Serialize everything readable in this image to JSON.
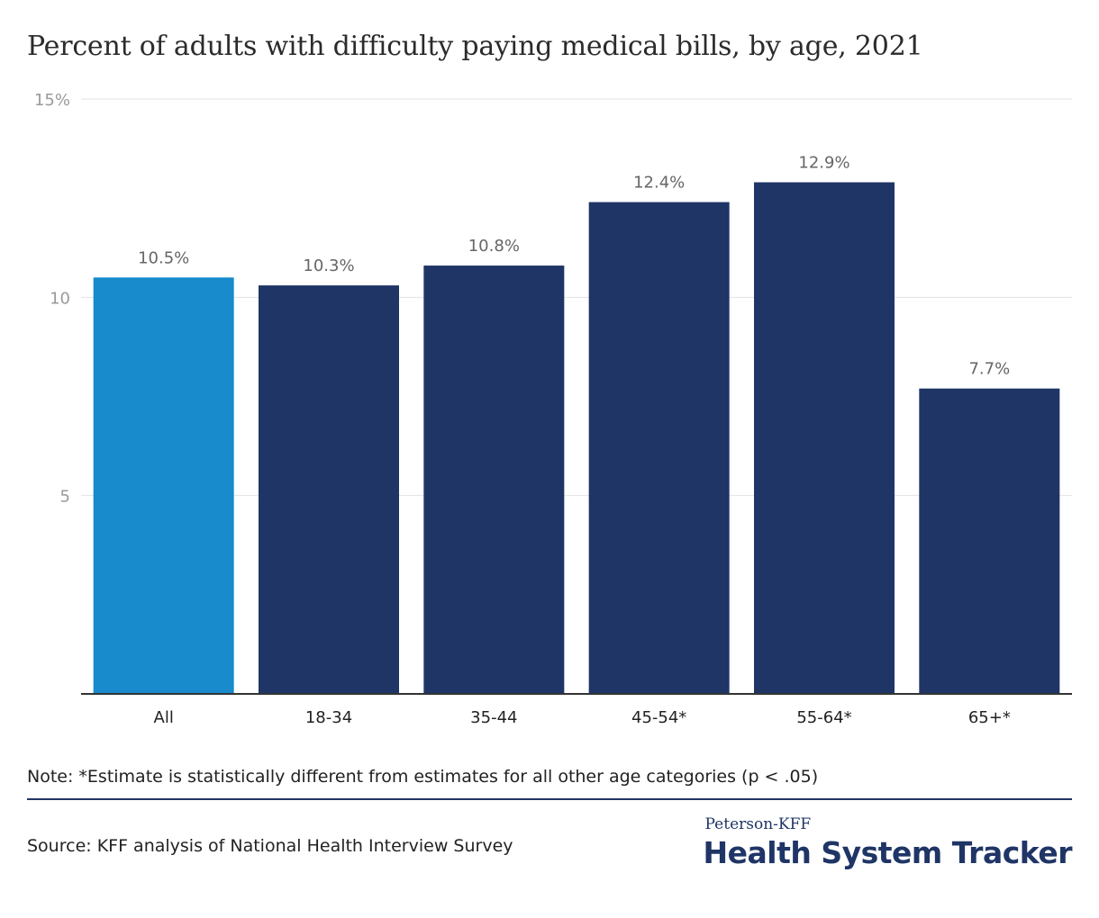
{
  "title": "Percent of adults with difficulty paying medical bills, by age, 2021",
  "note": "Note: *Estimate is statistically different from estimates for all other age categories (p < .05)",
  "source": "Source: KFF analysis of National Health Interview Survey",
  "logo": {
    "top": "Peterson-KFF",
    "main": "Health System Tracker"
  },
  "colors": {
    "highlight": "#178bcc",
    "bar": "#1f3566",
    "grid": "#e2e2e2",
    "tick_label": "#9a9a9a",
    "data_label": "#666666",
    "axis": "#333333"
  },
  "chart_data": {
    "type": "bar",
    "categories": [
      "All",
      "18-34",
      "35-44",
      "45-54*",
      "55-64*",
      "65+*"
    ],
    "values": [
      10.5,
      10.3,
      10.8,
      12.4,
      12.9,
      7.7
    ],
    "data_labels": [
      "10.5%",
      "10.3%",
      "10.8%",
      "12.4%",
      "12.9%",
      "7.7%"
    ],
    "highlight_index": 0,
    "ylim": [
      0,
      15
    ],
    "yticks": [
      5,
      10,
      15
    ],
    "ytick_labels": [
      "5",
      "10",
      "15%"
    ],
    "grid": true,
    "xlabel": "",
    "ylabel": ""
  }
}
